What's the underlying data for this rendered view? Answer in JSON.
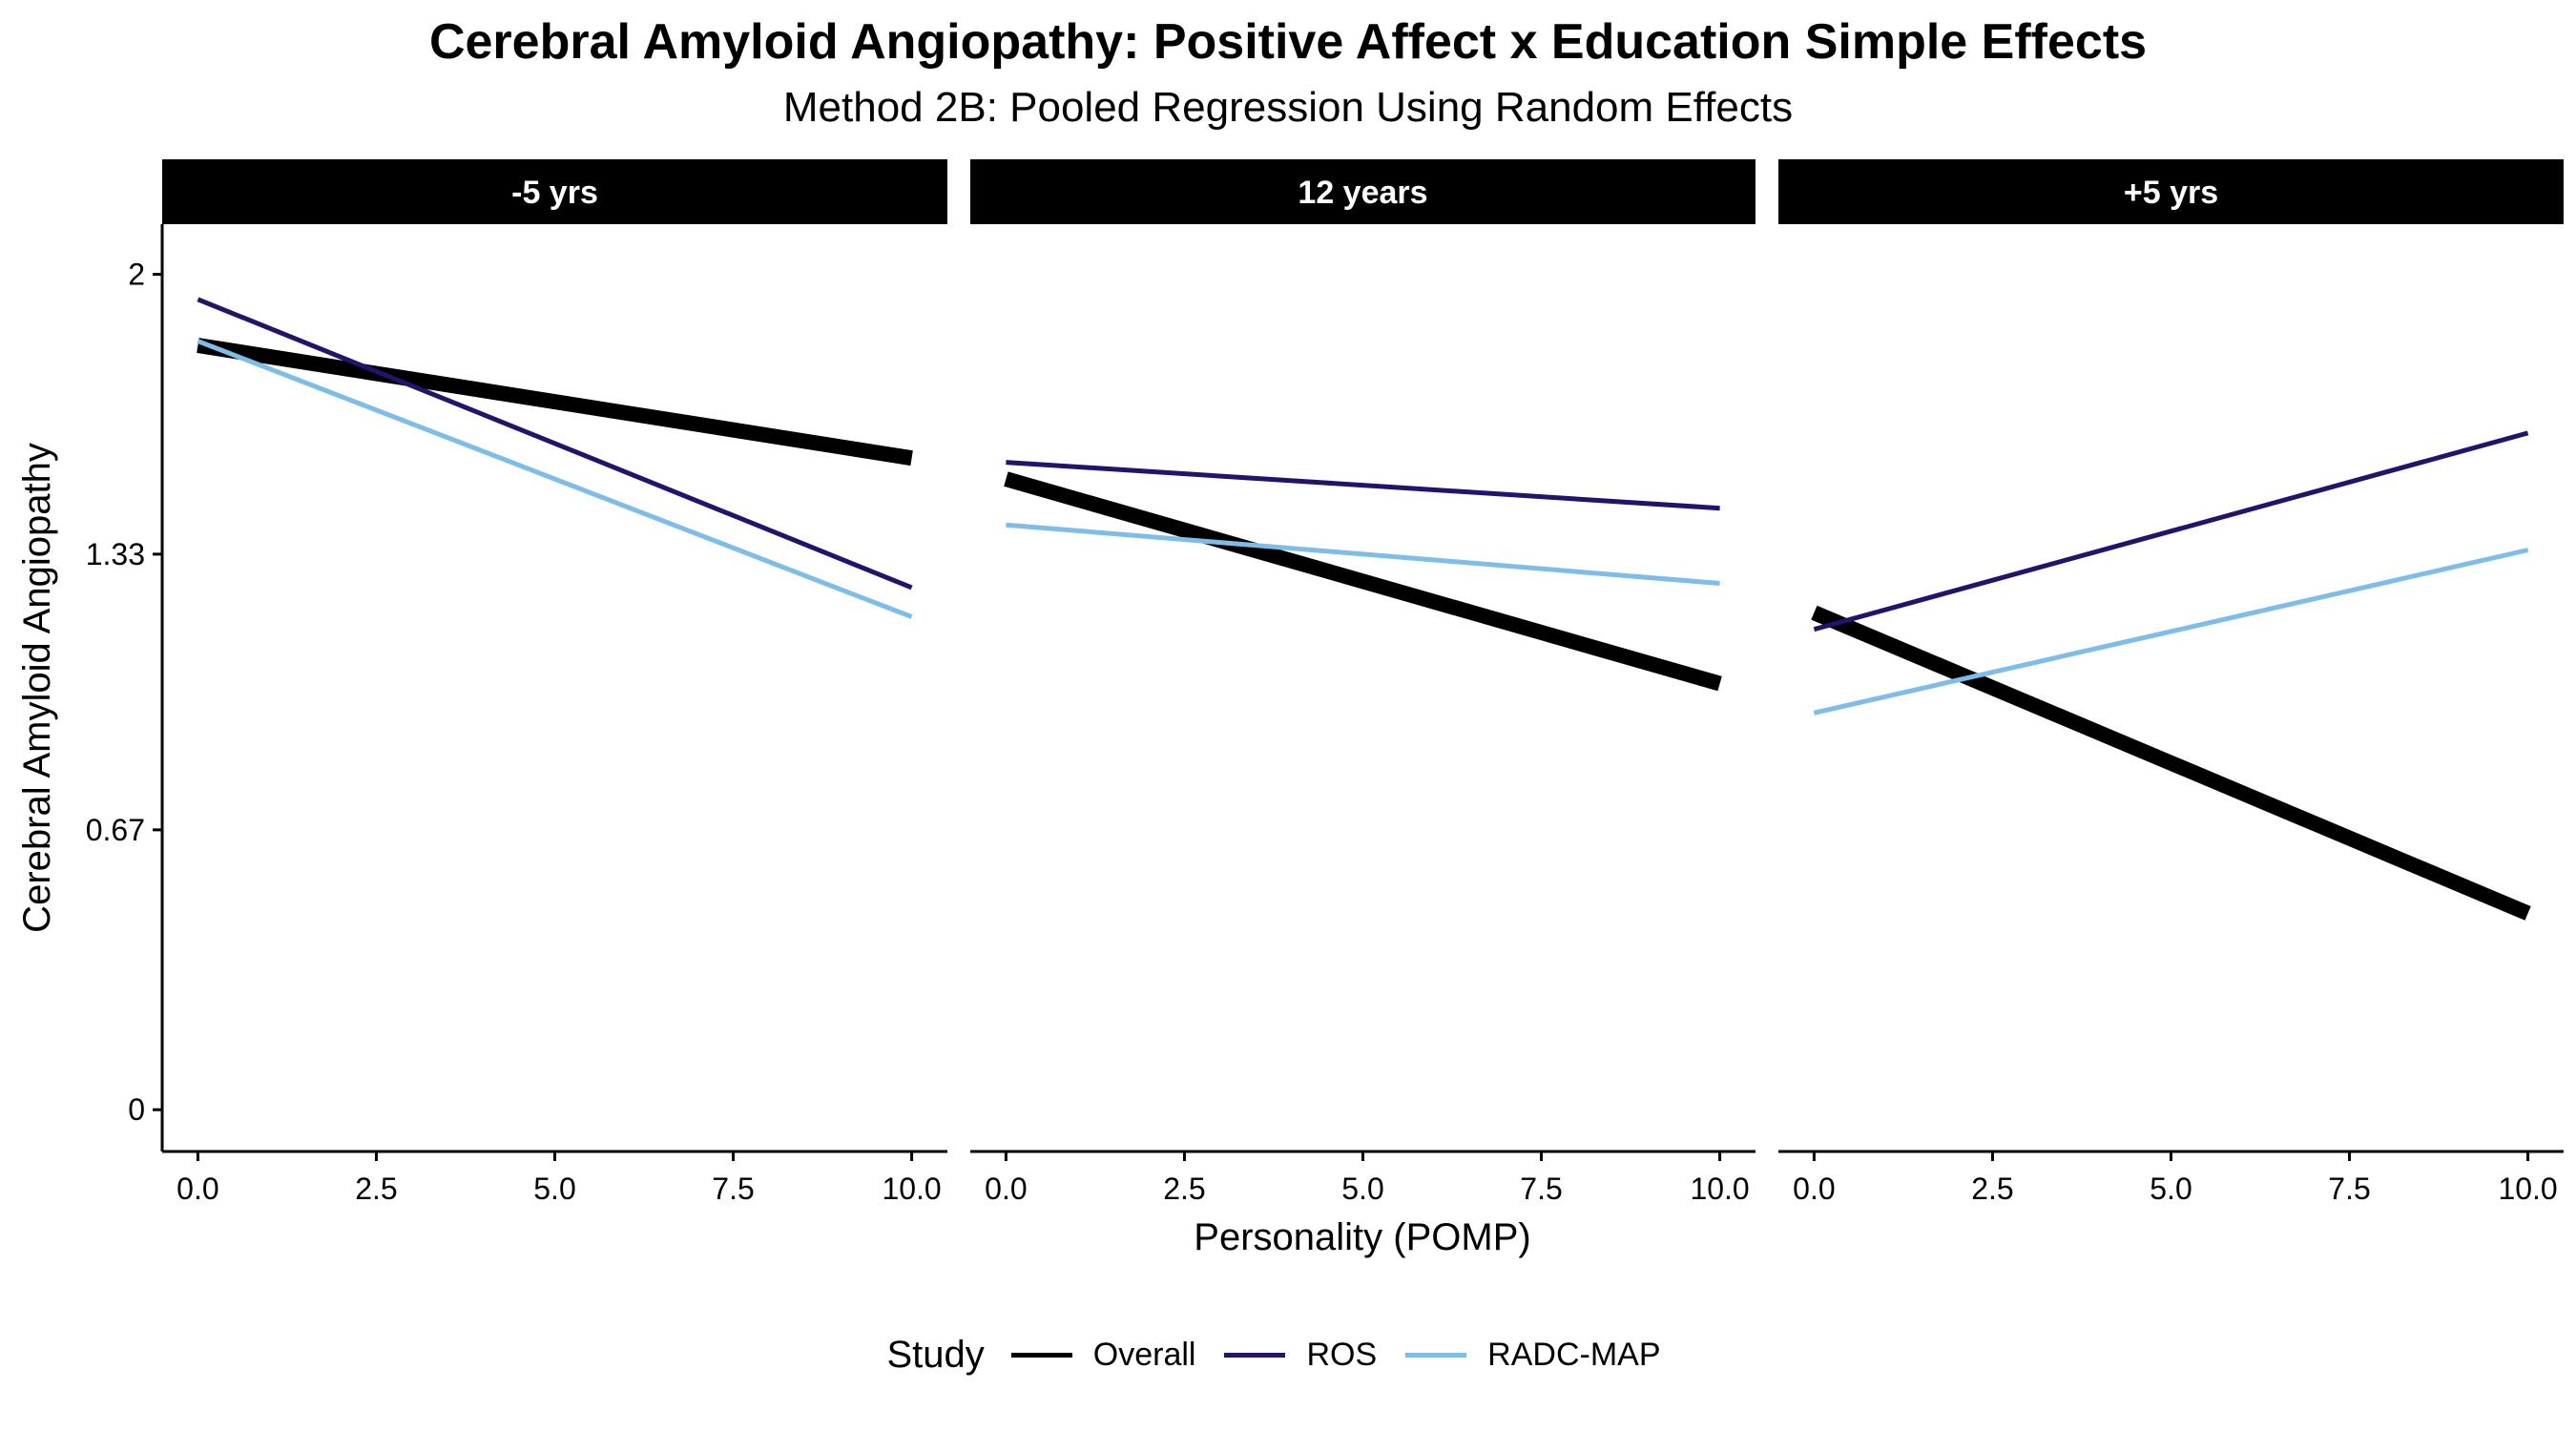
{
  "chart_data": {
    "type": "line",
    "title": "Cerebral Amyloid Angiopathy: Positive Affect x Education Simple Effects",
    "subtitle": "Method 2B: Pooled Regression Using Random Effects",
    "xlabel": "Personality (POMP)",
    "ylabel": "Cerebral Amyloid Angiopathy",
    "xlim": [
      -0.5,
      10.5
    ],
    "ylim": [
      -0.1,
      2.12
    ],
    "xticks": [
      0,
      2.5,
      5,
      7.5,
      10
    ],
    "xtick_labels": [
      "0.0",
      "2.5",
      "5.0",
      "7.5",
      "10.0"
    ],
    "yticks": [
      0,
      0.67,
      1.33,
      2
    ],
    "ytick_labels": [
      "0",
      "0.67",
      "1.33",
      "2"
    ],
    "grid": false,
    "legend": {
      "title": "Study",
      "position": "bottom",
      "entries": [
        "Overall",
        "ROS",
        "RADC-MAP"
      ]
    },
    "panels": [
      {
        "label": "-5 yrs",
        "series": [
          {
            "name": "Overall",
            "x": [
              0,
              10
            ],
            "y": [
              1.83,
              1.56
            ]
          },
          {
            "name": "ROS",
            "x": [
              0,
              10
            ],
            "y": [
              1.94,
              1.25
            ]
          },
          {
            "name": "RADC-MAP",
            "x": [
              0,
              10
            ],
            "y": [
              1.84,
              1.18
            ]
          }
        ]
      },
      {
        "label": "12 years",
        "series": [
          {
            "name": "Overall",
            "x": [
              0,
              10
            ],
            "y": [
              1.51,
              1.02
            ]
          },
          {
            "name": "ROS",
            "x": [
              0,
              10
            ],
            "y": [
              1.55,
              1.44
            ]
          },
          {
            "name": "RADC-MAP",
            "x": [
              0,
              10
            ],
            "y": [
              1.4,
              1.26
            ]
          }
        ]
      },
      {
        "label": "+5 yrs",
        "series": [
          {
            "name": "Overall",
            "x": [
              0,
              10
            ],
            "y": [
              1.19,
              0.47
            ]
          },
          {
            "name": "ROS",
            "x": [
              0,
              10
            ],
            "y": [
              1.15,
              1.62
            ]
          },
          {
            "name": "RADC-MAP",
            "x": [
              0,
              10
            ],
            "y": [
              0.95,
              1.34
            ]
          }
        ]
      }
    ],
    "series_styles": [
      {
        "name": "Overall",
        "color": "#000000",
        "weight": "thick"
      },
      {
        "name": "ROS",
        "color": "#24126b",
        "weight": "thin"
      },
      {
        "name": "RADC-MAP",
        "color": "#7dbde8",
        "weight": "thin"
      }
    ]
  }
}
